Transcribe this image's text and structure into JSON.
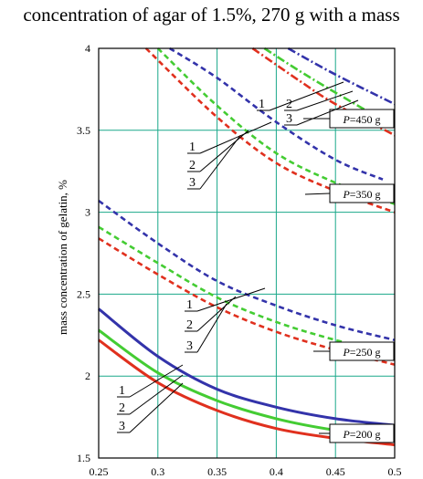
{
  "header": {
    "text": "concentration of agar of 1.5%, 270 g with a mass"
  },
  "chart_data": {
    "type": "line",
    "ylabel": "mass concentration of gelatin, %",
    "xlim": [
      0.25,
      0.5
    ],
    "ylim": [
      1.5,
      4.0
    ],
    "x_ticks": [
      "0.25",
      "0.3",
      "0.35",
      "0.4",
      "0.45",
      "0.5"
    ],
    "y_ticks": [
      "1.5",
      "2",
      "2.5",
      "3",
      "3.5",
      "4"
    ],
    "grid": true,
    "colors": {
      "1": "#3333aa",
      "2": "#44cc33",
      "3": "#e0301e"
    },
    "groups": [
      {
        "label_prefix": "P",
        "label_value": "=200 g",
        "style": "solid",
        "series": [
          {
            "name": "1",
            "x": [
              0.25,
              0.3,
              0.35,
              0.4,
              0.45,
              0.5
            ],
            "y": [
              2.41,
              2.12,
              1.92,
              1.81,
              1.74,
              1.7
            ]
          },
          {
            "name": "2",
            "x": [
              0.25,
              0.3,
              0.35,
              0.4,
              0.45,
              0.5
            ],
            "y": [
              2.28,
              2.02,
              1.85,
              1.74,
              1.67,
              1.63
            ]
          },
          {
            "name": "3",
            "x": [
              0.25,
              0.3,
              0.35,
              0.4,
              0.45,
              0.5
            ],
            "y": [
              2.22,
              1.96,
              1.79,
              1.68,
              1.62,
              1.58
            ]
          }
        ]
      },
      {
        "label_prefix": "P",
        "label_value": "=250 g",
        "style": "dashed",
        "series": [
          {
            "name": "1",
            "x": [
              0.25,
              0.3,
              0.35,
              0.4,
              0.45,
              0.5
            ],
            "y": [
              3.07,
              2.81,
              2.58,
              2.43,
              2.31,
              2.22
            ]
          },
          {
            "name": "2",
            "x": [
              0.25,
              0.3,
              0.35,
              0.4,
              0.45,
              0.5
            ],
            "y": [
              2.91,
              2.69,
              2.48,
              2.33,
              2.22,
              2.13
            ]
          },
          {
            "name": "3",
            "x": [
              0.25,
              0.3,
              0.35,
              0.4,
              0.45,
              0.5
            ],
            "y": [
              2.84,
              2.62,
              2.42,
              2.27,
              2.16,
              2.07
            ]
          }
        ]
      },
      {
        "label_prefix": "P",
        "label_value": "=350 g",
        "style": "dashed",
        "series": [
          {
            "name": "1",
            "x": [
              0.31,
              0.35,
              0.4,
              0.45,
              0.49
            ],
            "y": [
              4.0,
              3.82,
              3.55,
              3.32,
              3.2
            ]
          },
          {
            "name": "2",
            "x": [
              0.3,
              0.35,
              0.4,
              0.45,
              0.5
            ],
            "y": [
              4.0,
              3.65,
              3.36,
              3.18,
              3.05
            ]
          },
          {
            "name": "3",
            "x": [
              0.29,
              0.35,
              0.4,
              0.45,
              0.5
            ],
            "y": [
              4.0,
              3.58,
              3.3,
              3.13,
              3.0
            ]
          }
        ]
      },
      {
        "label_prefix": "P",
        "label_value": "=450 g",
        "style": "dashdot",
        "series": [
          {
            "name": "1",
            "x": [
              0.41,
              0.45,
              0.5
            ],
            "y": [
              4.0,
              3.84,
              3.66
            ]
          },
          {
            "name": "2",
            "x": [
              0.39,
              0.42,
              0.45,
              0.5
            ],
            "y": [
              4.0,
              3.86,
              3.73,
              3.52
            ]
          },
          {
            "name": "3",
            "x": [
              0.38,
              0.42,
              0.45,
              0.5
            ],
            "y": [
              4.0,
              3.8,
              3.66,
              3.47
            ]
          }
        ]
      }
    ],
    "curve_labels": [
      {
        "group": "P=450 g",
        "labels": [
          "1",
          "2",
          "3"
        ]
      },
      {
        "group": "P=350 g",
        "labels": [
          "1",
          "2",
          "3"
        ]
      },
      {
        "group": "P=250 g",
        "labels": [
          "1",
          "2",
          "3"
        ]
      },
      {
        "group": "P=200 g",
        "labels": [
          "1",
          "2",
          "3"
        ]
      }
    ]
  }
}
